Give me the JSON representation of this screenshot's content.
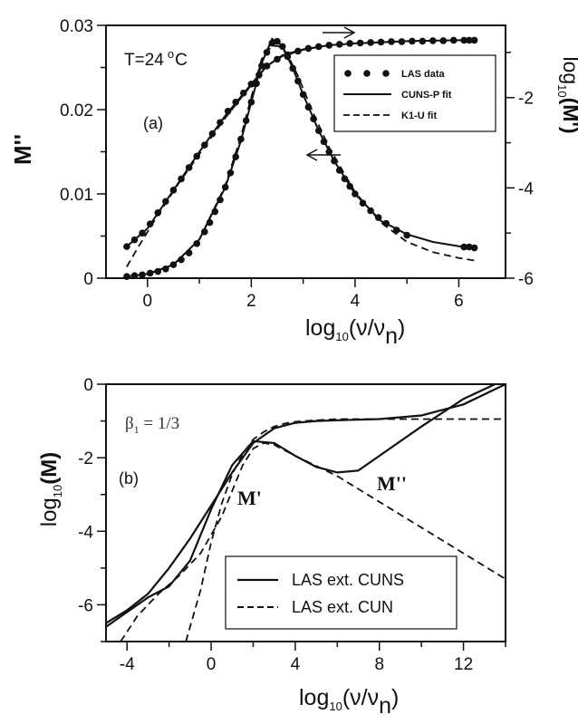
{
  "chart_data": [
    {
      "panel": "(a)",
      "type": "line",
      "annotation": "T=24 °C",
      "annotation_text": "T=24",
      "annotation_sup": "o",
      "annotation_unit": "C",
      "xlabel_main": "log",
      "xlabel_sub": "10",
      "xlabel_arg": "(ν/ν",
      "xlabel_argsub": "n",
      "xlabel_close": ")",
      "ylabel_left": "M''",
      "ylabel_right_main": "log",
      "ylabel_right_sub": "10",
      "ylabel_right_arg": "(M')",
      "xlim": [
        -0.8,
        6.9
      ],
      "ylim_left": [
        0,
        0.03
      ],
      "ylim_right": [
        -6,
        -0.4
      ],
      "xticks": [
        0,
        2,
        4,
        6
      ],
      "yticks_left": [
        0,
        0.01,
        0.02,
        0.03
      ],
      "yticks_left_labels": [
        "0",
        "0.01",
        "0.02",
        "0.03"
      ],
      "yticks_right": [
        -6,
        -4,
        -2
      ],
      "yticks_right_labels": [
        "-6",
        "-4",
        "-2"
      ],
      "legend_position": "top-right",
      "legend": [
        "LAS data",
        "CUNS-P fit",
        "K1-U fit"
      ],
      "series": [
        {
          "name": "LAS data",
          "axis": "left",
          "style": "markers",
          "x": [
            -0.4,
            -0.25,
            -0.1,
            0.05,
            0.2,
            0.35,
            0.5,
            0.65,
            0.8,
            0.95,
            1.1,
            1.2,
            1.3,
            1.4,
            1.5,
            1.6,
            1.7,
            1.8,
            1.9,
            2.0,
            2.1,
            2.2,
            2.3,
            2.4,
            2.5,
            2.6,
            2.7,
            2.8,
            2.9,
            3.0,
            3.1,
            3.2,
            3.3,
            3.4,
            3.5,
            3.6,
            3.7,
            3.8,
            3.9,
            4.0,
            4.15,
            4.3,
            4.45,
            4.6,
            4.8,
            5.0,
            6.1,
            6.2,
            6.3
          ],
          "values": [
            0.0002,
            0.0003,
            0.0004,
            0.0006,
            0.0008,
            0.0011,
            0.0016,
            0.0022,
            0.003,
            0.0041,
            0.0055,
            0.0066,
            0.0079,
            0.0093,
            0.0108,
            0.0125,
            0.0144,
            0.0165,
            0.0187,
            0.0209,
            0.0231,
            0.0252,
            0.0268,
            0.0279,
            0.0281,
            0.0275,
            0.0263,
            0.0249,
            0.0234,
            0.0218,
            0.0203,
            0.0189,
            0.0175,
            0.0162,
            0.015,
            0.0139,
            0.0128,
            0.0118,
            0.0109,
            0.01,
            0.0089,
            0.008,
            0.0072,
            0.0065,
            0.0057,
            0.0051,
            0.0037,
            0.0037,
            0.0036
          ]
        },
        {
          "name": "LAS data",
          "axis": "right",
          "style": "markers",
          "x": [
            -0.4,
            -0.25,
            -0.1,
            0.05,
            0.2,
            0.35,
            0.5,
            0.65,
            0.8,
            0.95,
            1.1,
            1.25,
            1.4,
            1.55,
            1.7,
            1.85,
            2.0,
            2.15,
            2.3,
            2.5,
            2.7,
            2.9,
            3.1,
            3.3,
            3.5,
            3.7,
            3.9,
            4.1,
            4.3,
            4.5,
            4.7,
            4.9,
            5.1,
            5.3,
            5.5,
            5.7,
            5.9,
            6.1,
            6.2,
            6.3
          ],
          "values": [
            -5.3,
            -5.15,
            -5.0,
            -4.8,
            -4.55,
            -4.3,
            -4.05,
            -3.8,
            -3.55,
            -3.3,
            -3.05,
            -2.8,
            -2.55,
            -2.3,
            -2.1,
            -1.9,
            -1.7,
            -1.5,
            -1.3,
            -1.15,
            -1.05,
            -0.97,
            -0.91,
            -0.87,
            -0.84,
            -0.82,
            -0.8,
            -0.79,
            -0.78,
            -0.77,
            -0.76,
            -0.76,
            -0.75,
            -0.75,
            -0.74,
            -0.74,
            -0.73,
            -0.73,
            -0.73,
            -0.73
          ]
        },
        {
          "name": "CUNS-P fit",
          "axis": "left",
          "style": "solid",
          "x": [
            -0.4,
            0.0,
            0.5,
            1.0,
            1.5,
            1.8,
            2.0,
            2.2,
            2.4,
            2.6,
            2.8,
            3.0,
            3.3,
            3.6,
            4.0,
            4.5,
            5.0,
            5.5,
            6.0,
            6.3
          ],
          "values": [
            0.0002,
            0.0005,
            0.0016,
            0.0046,
            0.0108,
            0.0163,
            0.0209,
            0.0255,
            0.0284,
            0.0276,
            0.0249,
            0.0218,
            0.0175,
            0.0139,
            0.01,
            0.0068,
            0.0052,
            0.0043,
            0.0038,
            0.0036
          ]
        },
        {
          "name": "CUNS-P fit",
          "axis": "right",
          "style": "solid",
          "x": [
            -0.4,
            0.0,
            0.5,
            1.0,
            1.5,
            2.0,
            2.3,
            2.6,
            3.0,
            3.5,
            4.0,
            5.0,
            6.0,
            6.3
          ],
          "values": [
            -5.3,
            -4.9,
            -4.05,
            -3.2,
            -2.4,
            -1.7,
            -1.3,
            -1.08,
            -0.94,
            -0.84,
            -0.8,
            -0.75,
            -0.73,
            -0.73
          ]
        },
        {
          "name": "K1-U fit",
          "axis": "left",
          "style": "dashed",
          "x": [
            -0.4,
            0.0,
            0.5,
            1.0,
            1.5,
            1.8,
            2.0,
            2.2,
            2.4,
            2.55,
            2.7,
            2.9,
            3.2,
            3.5,
            4.0,
            4.5,
            5.0,
            5.5,
            6.0,
            6.3
          ],
          "values": [
            0.0002,
            0.0005,
            0.0016,
            0.0046,
            0.011,
            0.0168,
            0.0215,
            0.026,
            0.0276,
            0.0275,
            0.0265,
            0.024,
            0.0195,
            0.0155,
            0.0102,
            0.0066,
            0.0043,
            0.0031,
            0.0024,
            0.0021
          ]
        },
        {
          "name": "K1-U fit",
          "axis": "right",
          "style": "dashed",
          "x": [
            -0.4,
            -0.2,
            0.2,
            0.6,
            1.0,
            1.5,
            2.0,
            2.3,
            2.6,
            3.0,
            3.5,
            4.0,
            5.0,
            6.0,
            6.3
          ],
          "values": [
            -5.75,
            -5.35,
            -4.6,
            -3.9,
            -3.25,
            -2.45,
            -1.72,
            -1.3,
            -1.06,
            -0.93,
            -0.84,
            -0.8,
            -0.75,
            -0.73,
            -0.73
          ]
        }
      ]
    },
    {
      "panel": "(b)",
      "type": "line",
      "annotation_beta": "β",
      "annotation_beta_sub": "1",
      "annotation_beta_val": " = 1/3",
      "xlabel_main": "log",
      "xlabel_sub": "10",
      "xlabel_arg": "(ν/ν",
      "xlabel_argsub": "n",
      "xlabel_close": ")",
      "ylabel_main": "log",
      "ylabel_sub": "10",
      "ylabel_arg": "(M)",
      "label_mprime": "M'",
      "label_mdprime": "M''",
      "xlim": [
        -5,
        14
      ],
      "ylim": [
        -7,
        0
      ],
      "xticks": [
        -4,
        0,
        4,
        8,
        12
      ],
      "xticks_labels": [
        "-4",
        "0",
        "4",
        "8",
        "12"
      ],
      "yticks": [
        0,
        -2,
        -4,
        -6
      ],
      "yticks_labels": [
        "0",
        "-2",
        "-4",
        "-6"
      ],
      "legend_position": "bottom-right",
      "legend": [
        "LAS ext. CUNS",
        "LAS ext. CUN"
      ],
      "series": [
        {
          "name": "LAS ext. CUNS",
          "quantity": "M'",
          "style": "solid",
          "x": [
            -5,
            -4,
            -3,
            -2,
            -1,
            0,
            1,
            2,
            3,
            4,
            5,
            6,
            8,
            10,
            12,
            14
          ],
          "values": [
            -6.5,
            -6.15,
            -5.7,
            -5.0,
            -4.2,
            -3.3,
            -2.4,
            -1.6,
            -1.2,
            -1.05,
            -1.0,
            -0.98,
            -0.95,
            -0.85,
            -0.55,
            0.0
          ]
        },
        {
          "name": "LAS ext. CUNS",
          "quantity": "M''",
          "style": "solid",
          "x": [
            -5,
            -4,
            -3,
            -2,
            -1,
            0,
            1,
            2,
            3,
            4,
            5,
            6,
            7,
            8,
            10,
            12,
            13.5
          ],
          "values": [
            -6.6,
            -6.2,
            -5.8,
            -5.5,
            -4.8,
            -3.4,
            -2.2,
            -1.55,
            -1.6,
            -1.95,
            -2.25,
            -2.4,
            -2.35,
            -1.95,
            -1.15,
            -0.4,
            0.0
          ]
        },
        {
          "name": "LAS ext. CUN",
          "quantity": "M'",
          "style": "dashed",
          "x": [
            -1.2,
            -0.5,
            0.0,
            0.5,
            1.0,
            1.5,
            2.0,
            2.5,
            3.0,
            3.5,
            4.0,
            5.0,
            6.0,
            8.0,
            10.0,
            12.0,
            14.0
          ],
          "values": [
            -7.0,
            -5.6,
            -4.3,
            -3.25,
            -2.45,
            -1.9,
            -1.5,
            -1.3,
            -1.15,
            -1.07,
            -1.02,
            -0.98,
            -0.95,
            -0.95,
            -0.95,
            -0.95,
            -0.95
          ]
        },
        {
          "name": "LAS ext. CUN",
          "quantity": "M''",
          "style": "dashed",
          "x": [
            -4.3,
            -3.5,
            -2.5,
            -1.5,
            -0.5,
            0.5,
            1.5,
            2.0,
            2.5,
            3.0,
            4.0,
            6.0,
            8.0,
            10.0,
            12.0,
            14.0
          ],
          "values": [
            -7.0,
            -6.3,
            -5.7,
            -5.2,
            -4.6,
            -3.6,
            -2.2,
            -1.75,
            -1.6,
            -1.65,
            -1.95,
            -2.5,
            -3.2,
            -3.9,
            -4.6,
            -5.3
          ]
        }
      ]
    }
  ]
}
